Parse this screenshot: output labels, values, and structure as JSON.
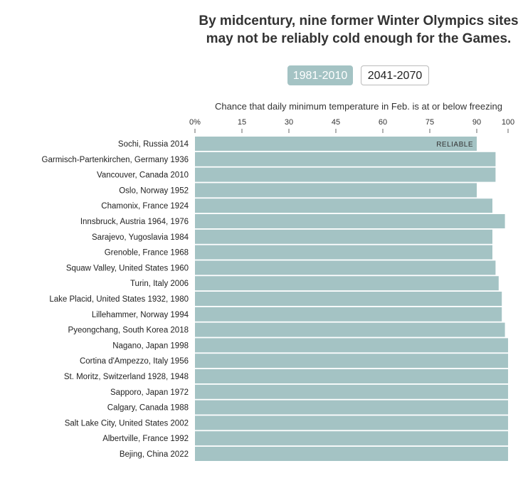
{
  "title_lines": [
    "By midcentury, nine former Winter Olympics sites",
    "may not be reliably cold enough for the Games."
  ],
  "toggle": {
    "active_label": "1981-2010",
    "inactive_label": "2041-2070"
  },
  "colors": {
    "bar": "#a4c3c4",
    "active_button": "#a4c3c4"
  },
  "chart_data": {
    "type": "bar",
    "orientation": "horizontal",
    "title": "By midcentury, nine former Winter Olympics sites may not be reliably cold enough for the Games.",
    "xlabel": "Chance that daily minimum temperature in Feb. is at or below freezing",
    "ylabel": "",
    "xlim": [
      0,
      100
    ],
    "xticks": [
      0,
      15,
      30,
      45,
      60,
      75,
      90,
      100
    ],
    "xtick_labels": [
      "0%",
      "15",
      "30",
      "45",
      "60",
      "75",
      "90",
      "100"
    ],
    "reliable_threshold": 90,
    "annotation": "RELIABLE",
    "series_name": "1981-2010",
    "categories": [
      "Sochi, Russia 2014",
      "Garmisch-Partenkirchen, Germany 1936",
      "Vancouver, Canada 2010",
      "Oslo, Norway 1952",
      "Chamonix, France 1924",
      "Innsbruck, Austria 1964, 1976",
      "Sarajevo, Yugoslavia 1984",
      "Grenoble, France 1968",
      "Squaw Valley, United States 1960",
      "Turin, Italy 2006",
      "Lake Placid, United States 1932, 1980",
      "Lillehammer, Norway 1994",
      "Pyeongchang, South Korea 2018",
      "Nagano, Japan 1998",
      "Cortina d'Ampezzo, Italy 1956",
      "St. Moritz, Switzerland 1928, 1948",
      "Sapporo, Japan 1972",
      "Calgary, Canada 1988",
      "Salt Lake City, United States 2002",
      "Albertville, France 1992",
      "Bejing, China 2022"
    ],
    "values": [
      90,
      96,
      96,
      90,
      95,
      99,
      95,
      95,
      96,
      97,
      98,
      98,
      99,
      100,
      100,
      100,
      100,
      100,
      100,
      100,
      100
    ]
  }
}
